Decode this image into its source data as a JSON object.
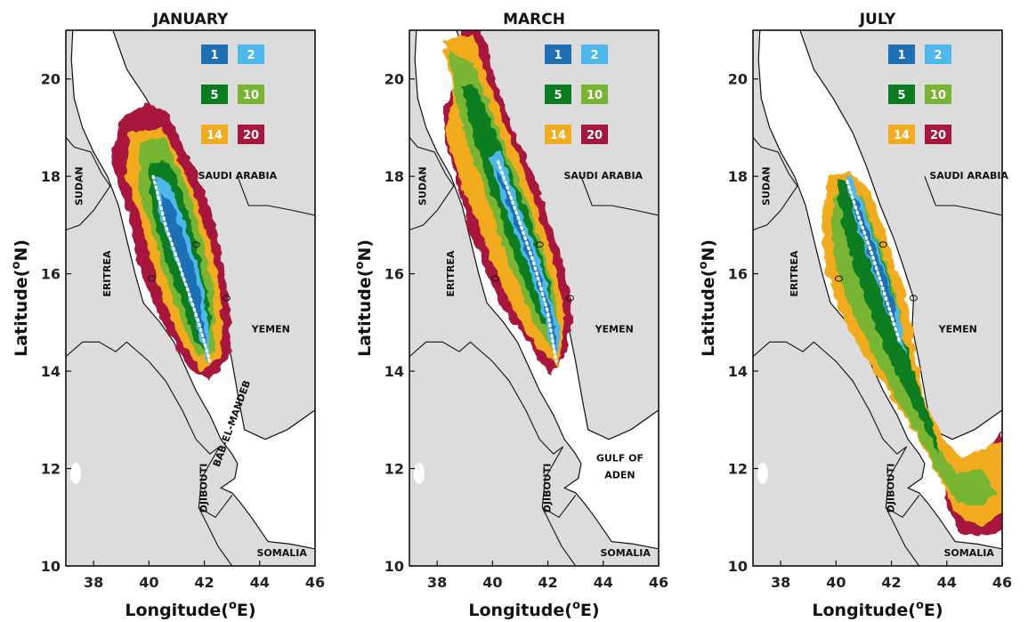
{
  "panels": [
    {
      "title": "JANUARY",
      "countries": [
        "SUDAN",
        "ERITREA",
        "SAUDI ARABIA",
        "YEMEN",
        "DJIBOUTI",
        "BAB-EL-MANDEB",
        "SOMALIA"
      ],
      "extent": [
        14.0,
        19.3
      ]
    },
    {
      "title": "MARCH",
      "countries": [
        "SUDAN",
        "ERITREA",
        "SAUDI ARABIA",
        "YEMEN",
        "DJIBOUTI",
        "GULF OF",
        "ADEN",
        "SOMALIA"
      ],
      "extent": [
        14.0,
        21.0
      ]
    },
    {
      "title": "JULY",
      "countries": [
        "SUDAN",
        "ERITREA",
        "SAUDI ARABIA",
        "YEMEN",
        "DJIBOUTI",
        "SOMALIA"
      ],
      "extent": [
        10.4,
        18.1
      ]
    }
  ],
  "legend": [
    {
      "label": "1",
      "color": "#1f6fb5"
    },
    {
      "label": "2",
      "color": "#4db8ec"
    },
    {
      "label": "5",
      "color": "#0a7d20"
    },
    {
      "label": "10",
      "color": "#77b531"
    },
    {
      "label": "14",
      "color": "#f2ab1f"
    },
    {
      "label": "20",
      "color": "#a8163e"
    }
  ],
  "axes": {
    "xlabel": "Longitude(",
    "xunit": "o",
    "xsuffix": "E)",
    "ylabel": "Latitude(",
    "yunit": "o",
    "ysuffix": "N)",
    "x_ticks": [
      "38",
      "40",
      "42",
      "44",
      "46"
    ],
    "y_ticks": [
      "10",
      "12",
      "14",
      "16",
      "18",
      "20"
    ],
    "xlim": [
      37,
      46
    ],
    "ylim": [
      10,
      21
    ]
  },
  "colors": {
    "land": "#dcdcdc",
    "sea": "#ffffff",
    "track": "#ffffff"
  }
}
